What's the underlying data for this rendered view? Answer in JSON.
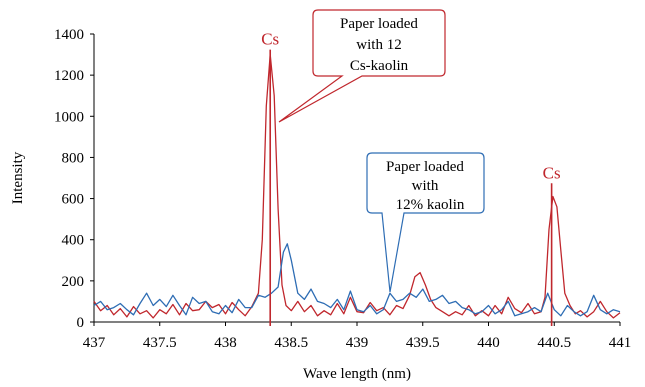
{
  "chart_data": {
    "type": "line",
    "xlabel": "Wave length (nm)",
    "ylabel": "Intensity",
    "xlim": [
      437,
      441
    ],
    "ylim": [
      0,
      1400
    ],
    "x_ticks": [
      "437",
      "437.5",
      "438",
      "438.5",
      "439",
      "439.5",
      "440",
      "440.5",
      "441"
    ],
    "y_ticks": [
      "0",
      "200",
      "400",
      "600",
      "800",
      "1000",
      "1200",
      "1400"
    ],
    "grid": false,
    "series_colors": [
      "#c0272d",
      "#2e6db4"
    ],
    "series": [
      {
        "color": "#c0272d",
        "points": [
          [
            437.0,
            100
          ],
          [
            437.05,
            55
          ],
          [
            437.1,
            80
          ],
          [
            437.15,
            35
          ],
          [
            437.2,
            65
          ],
          [
            437.25,
            25
          ],
          [
            437.3,
            75
          ],
          [
            437.35,
            40
          ],
          [
            437.4,
            55
          ],
          [
            437.45,
            20
          ],
          [
            437.5,
            60
          ],
          [
            437.55,
            40
          ],
          [
            437.6,
            85
          ],
          [
            437.65,
            35
          ],
          [
            437.7,
            90
          ],
          [
            437.75,
            55
          ],
          [
            437.8,
            60
          ],
          [
            437.85,
            100
          ],
          [
            437.9,
            70
          ],
          [
            437.95,
            85
          ],
          [
            438.0,
            40
          ],
          [
            438.05,
            95
          ],
          [
            438.1,
            60
          ],
          [
            438.15,
            30
          ],
          [
            438.2,
            75
          ],
          [
            438.25,
            140
          ],
          [
            438.28,
            400
          ],
          [
            438.31,
            1050
          ],
          [
            438.34,
            1300
          ],
          [
            438.37,
            1100
          ],
          [
            438.4,
            550
          ],
          [
            438.43,
            180
          ],
          [
            438.46,
            80
          ],
          [
            438.5,
            55
          ],
          [
            438.55,
            100
          ],
          [
            438.6,
            50
          ],
          [
            438.65,
            80
          ],
          [
            438.7,
            30
          ],
          [
            438.75,
            55
          ],
          [
            438.8,
            35
          ],
          [
            438.85,
            90
          ],
          [
            438.9,
            40
          ],
          [
            438.95,
            120
          ],
          [
            439.0,
            50
          ],
          [
            439.05,
            45
          ],
          [
            439.1,
            95
          ],
          [
            439.15,
            55
          ],
          [
            439.2,
            70
          ],
          [
            439.25,
            35
          ],
          [
            439.3,
            80
          ],
          [
            439.35,
            65
          ],
          [
            439.4,
            130
          ],
          [
            439.44,
            220
          ],
          [
            439.48,
            240
          ],
          [
            439.52,
            180
          ],
          [
            439.56,
            110
          ],
          [
            439.6,
            70
          ],
          [
            439.65,
            50
          ],
          [
            439.7,
            30
          ],
          [
            439.75,
            50
          ],
          [
            439.8,
            35
          ],
          [
            439.85,
            80
          ],
          [
            439.9,
            30
          ],
          [
            439.95,
            55
          ],
          [
            440.0,
            30
          ],
          [
            440.05,
            80
          ],
          [
            440.1,
            40
          ],
          [
            440.15,
            120
          ],
          [
            440.2,
            65
          ],
          [
            440.25,
            45
          ],
          [
            440.3,
            90
          ],
          [
            440.35,
            40
          ],
          [
            440.4,
            50
          ],
          [
            440.43,
            120
          ],
          [
            440.46,
            450
          ],
          [
            440.49,
            610
          ],
          [
            440.52,
            560
          ],
          [
            440.55,
            350
          ],
          [
            440.58,
            140
          ],
          [
            440.62,
            80
          ],
          [
            440.66,
            40
          ],
          [
            440.7,
            55
          ],
          [
            440.75,
            25
          ],
          [
            440.8,
            50
          ],
          [
            440.85,
            100
          ],
          [
            440.9,
            50
          ],
          [
            440.95,
            20
          ],
          [
            441.0,
            45
          ]
        ]
      },
      {
        "color": "#2e6db4",
        "points": [
          [
            437.0,
            80
          ],
          [
            437.05,
            100
          ],
          [
            437.1,
            60
          ],
          [
            437.15,
            70
          ],
          [
            437.2,
            90
          ],
          [
            437.25,
            60
          ],
          [
            437.3,
            35
          ],
          [
            437.35,
            90
          ],
          [
            437.4,
            140
          ],
          [
            437.45,
            80
          ],
          [
            437.5,
            110
          ],
          [
            437.55,
            75
          ],
          [
            437.6,
            130
          ],
          [
            437.65,
            80
          ],
          [
            437.7,
            35
          ],
          [
            437.75,
            120
          ],
          [
            437.8,
            90
          ],
          [
            437.85,
            100
          ],
          [
            437.9,
            50
          ],
          [
            437.95,
            40
          ],
          [
            438.0,
            80
          ],
          [
            438.05,
            45
          ],
          [
            438.1,
            110
          ],
          [
            438.15,
            70
          ],
          [
            438.2,
            70
          ],
          [
            438.25,
            130
          ],
          [
            438.3,
            120
          ],
          [
            438.35,
            140
          ],
          [
            438.4,
            170
          ],
          [
            438.44,
            340
          ],
          [
            438.47,
            380
          ],
          [
            438.5,
            300
          ],
          [
            438.55,
            140
          ],
          [
            438.6,
            110
          ],
          [
            438.65,
            160
          ],
          [
            438.7,
            100
          ],
          [
            438.75,
            90
          ],
          [
            438.8,
            70
          ],
          [
            438.85,
            110
          ],
          [
            438.9,
            60
          ],
          [
            438.95,
            150
          ],
          [
            439.0,
            60
          ],
          [
            439.05,
            50
          ],
          [
            439.1,
            80
          ],
          [
            439.15,
            40
          ],
          [
            439.2,
            60
          ],
          [
            439.25,
            140
          ],
          [
            439.3,
            100
          ],
          [
            439.35,
            110
          ],
          [
            439.4,
            140
          ],
          [
            439.45,
            120
          ],
          [
            439.5,
            160
          ],
          [
            439.55,
            100
          ],
          [
            439.6,
            110
          ],
          [
            439.65,
            130
          ],
          [
            439.7,
            90
          ],
          [
            439.75,
            100
          ],
          [
            439.8,
            70
          ],
          [
            439.85,
            60
          ],
          [
            439.9,
            40
          ],
          [
            439.95,
            50
          ],
          [
            440.0,
            80
          ],
          [
            440.05,
            40
          ],
          [
            440.1,
            60
          ],
          [
            440.15,
            100
          ],
          [
            440.2,
            30
          ],
          [
            440.25,
            40
          ],
          [
            440.3,
            50
          ],
          [
            440.35,
            70
          ],
          [
            440.4,
            50
          ],
          [
            440.45,
            140
          ],
          [
            440.5,
            60
          ],
          [
            440.55,
            30
          ],
          [
            440.6,
            80
          ],
          [
            440.65,
            50
          ],
          [
            440.7,
            30
          ],
          [
            440.75,
            50
          ],
          [
            440.8,
            130
          ],
          [
            440.85,
            60
          ],
          [
            440.9,
            40
          ],
          [
            440.95,
            60
          ],
          [
            441.0,
            50
          ]
        ]
      }
    ],
    "annotations": [
      {
        "text_lines": [
          "Paper loaded",
          "with 12",
          "Cs-kaolin"
        ],
        "color": "#c0272d",
        "target": [
          438.34,
          960
        ]
      },
      {
        "text_lines": [
          "Paper loaded",
          "with",
          "12% kaolin"
        ],
        "color": "#2e6db4",
        "target": [
          439.15,
          120
        ]
      }
    ],
    "peak_labels": [
      {
        "text": "Cs",
        "x": 438.34,
        "color": "#c0272d"
      },
      {
        "text": "Cs",
        "x": 440.48,
        "color": "#c0272d"
      }
    ]
  }
}
